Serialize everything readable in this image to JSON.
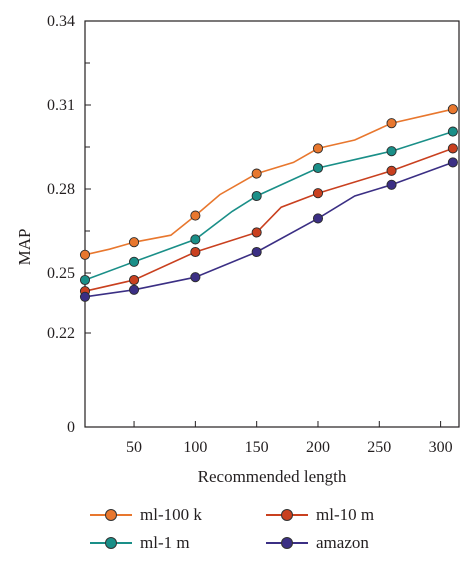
{
  "chart_data": {
    "type": "line",
    "xlabel": "Recommended length",
    "ylabel": "MAP",
    "xlim": [
      10,
      315
    ],
    "ylim": [
      0.195,
      0.34
    ],
    "x_ticks": [
      50,
      100,
      150,
      200,
      250,
      300
    ],
    "y_ticks": [
      0.25,
      0.28,
      0.31,
      0.34
    ],
    "y_tick_labels": [
      "0.25",
      "0.28",
      "0.31",
      "0.34"
    ],
    "y_extra_labels": [
      {
        "value": 0.22,
        "label": "0.22"
      },
      {
        "value": 0.195,
        "label": "0"
      }
    ],
    "grid": false,
    "legend": "bottom",
    "series": [
      {
        "name": "ml-100 k",
        "color": "#e8772e",
        "x": [
          10,
          30,
          50,
          80,
          100,
          120,
          150,
          180,
          200,
          230,
          260,
          290,
          310
        ],
        "lines": [
          0.2565,
          0.2585,
          0.261,
          0.2635,
          0.2705,
          0.278,
          0.2855,
          0.2895,
          0.2945,
          0.2975,
          0.3035,
          0.3065,
          0.3085
        ],
        "markers_x": [
          10,
          50,
          100,
          150,
          200,
          260,
          310
        ],
        "markers": [
          0.2565,
          0.261,
          0.2705,
          0.2855,
          0.2945,
          0.3035,
          0.3085
        ]
      },
      {
        "name": "ml-1 m",
        "color": "#1a8f88",
        "x": [
          10,
          50,
          100,
          130,
          150,
          200,
          260,
          310
        ],
        "lines": [
          0.2475,
          0.254,
          0.262,
          0.272,
          0.2775,
          0.2875,
          0.2935,
          0.3005
        ],
        "markers_x": [
          10,
          50,
          100,
          150,
          200,
          260,
          310
        ],
        "markers": [
          0.2475,
          0.254,
          0.262,
          0.2775,
          0.2875,
          0.2935,
          0.3005
        ]
      },
      {
        "name": "ml-10 m",
        "color": "#c9401f",
        "x": [
          10,
          50,
          100,
          150,
          170,
          200,
          260,
          310
        ],
        "lines": [
          0.2435,
          0.2475,
          0.2575,
          0.2645,
          0.2735,
          0.2785,
          0.2865,
          0.2945
        ],
        "markers_x": [
          10,
          50,
          100,
          150,
          200,
          260,
          310
        ],
        "markers": [
          0.2435,
          0.2475,
          0.2575,
          0.2645,
          0.2785,
          0.2865,
          0.2945
        ]
      },
      {
        "name": "amazon",
        "color": "#3b2f84",
        "x": [
          10,
          50,
          100,
          150,
          200,
          230,
          260,
          310
        ],
        "lines": [
          0.2415,
          0.244,
          0.2485,
          0.2575,
          0.2695,
          0.2775,
          0.2815,
          0.2895
        ],
        "markers_x": [
          10,
          50,
          100,
          150,
          200,
          260,
          310
        ],
        "markers": [
          0.2415,
          0.244,
          0.2485,
          0.2575,
          0.2695,
          0.2815,
          0.2895
        ]
      }
    ]
  }
}
